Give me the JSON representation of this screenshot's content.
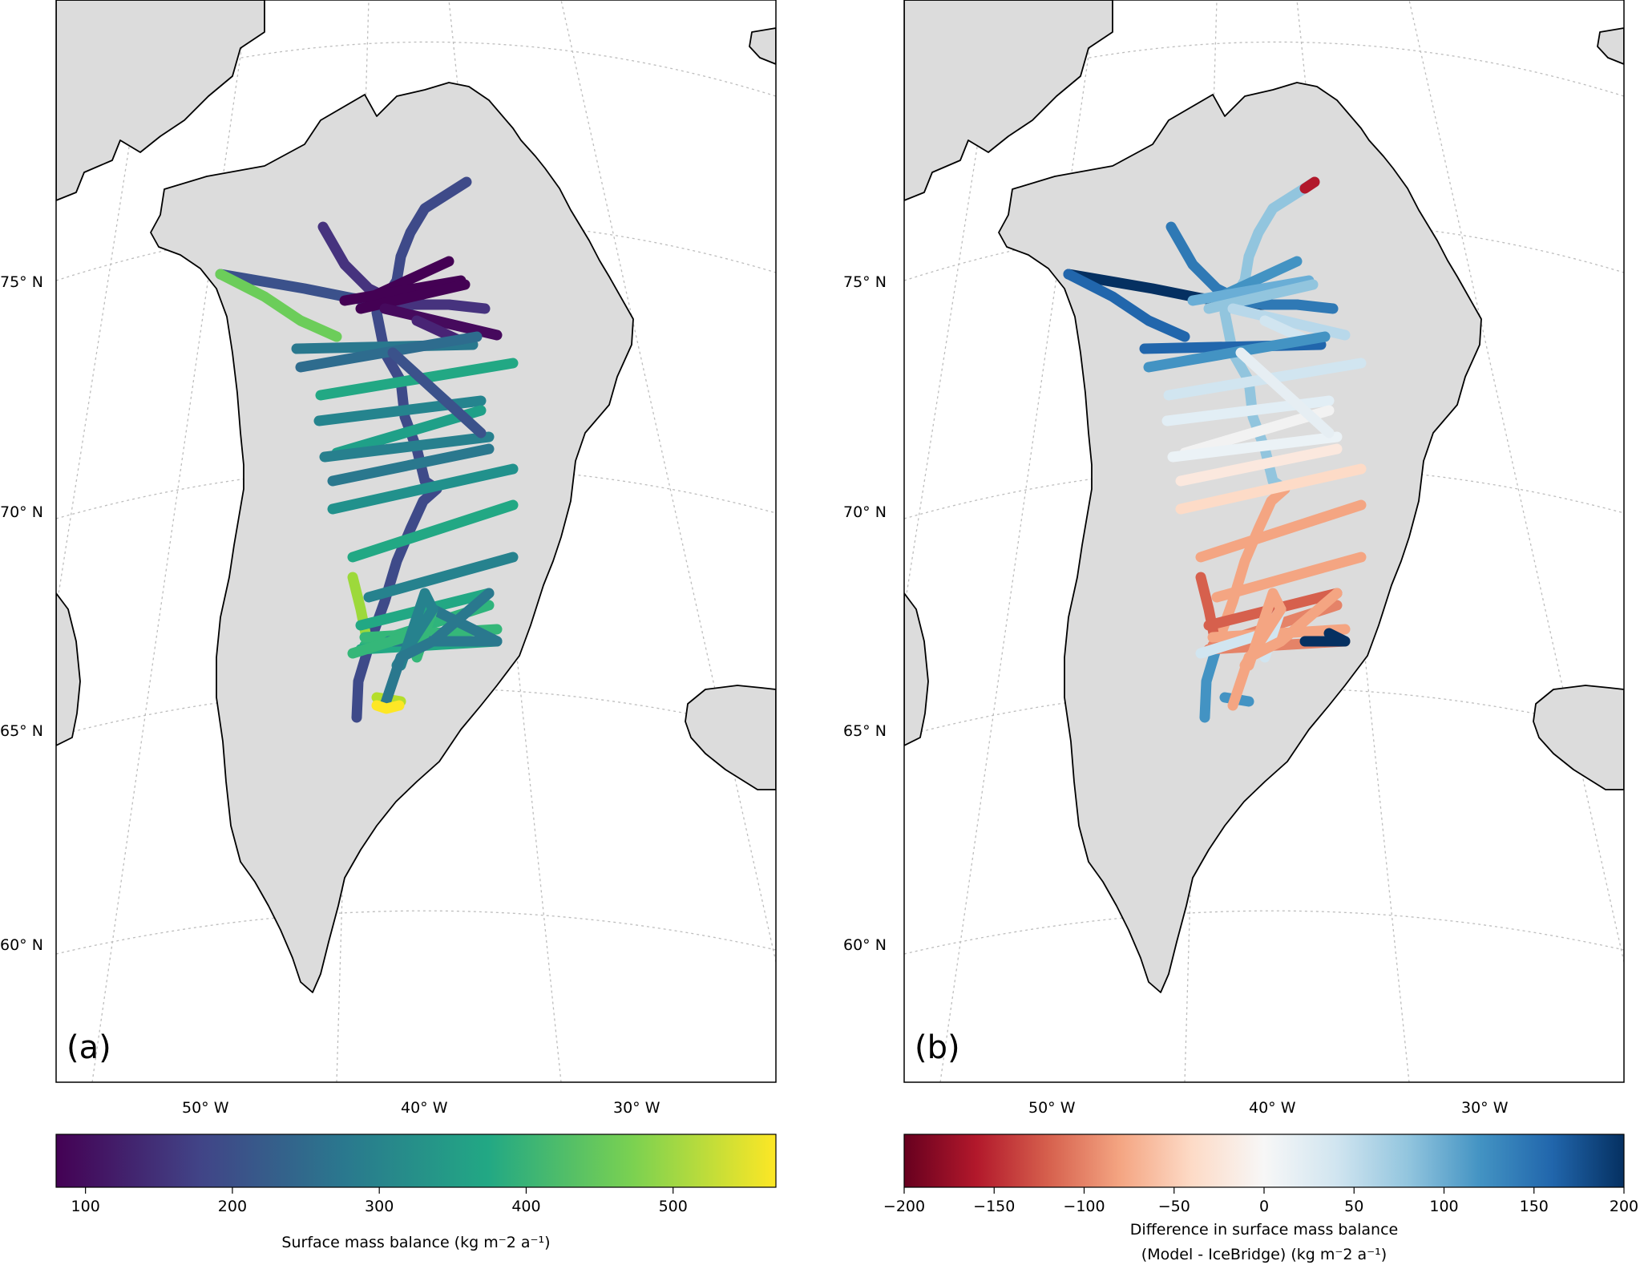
{
  "panels": [
    {
      "letter": "(a)",
      "lat_labels": [
        "75° N",
        "70° N",
        "65° N",
        "60° N"
      ],
      "lon_labels": [
        "50° W",
        "40° W",
        "30° W"
      ],
      "colorbar": {
        "colormap": "viridis",
        "colors": [
          "#440154",
          "#414487",
          "#2a788e",
          "#22a884",
          "#7ad151",
          "#fde725"
        ],
        "range": [
          80,
          570
        ],
        "ticks": [
          "100",
          "200",
          "300",
          "400",
          "500"
        ],
        "label": "Surface mass balance (kg m⁻2 a⁻¹)"
      }
    },
    {
      "letter": "(b)",
      "lat_labels": [
        "75° N",
        "70° N",
        "65° N",
        "60° N"
      ],
      "lon_labels": [
        "50° W",
        "40° W",
        "30° W"
      ],
      "colorbar": {
        "colormap": "RdBu",
        "colors": [
          "#67001f",
          "#b2182b",
          "#d6604d",
          "#f4a582",
          "#fddbc7",
          "#f7f7f7",
          "#d1e5f0",
          "#92c5de",
          "#4393c3",
          "#2166ac",
          "#053061"
        ],
        "range": [
          -200,
          200
        ],
        "ticks": [
          "−200",
          "−150",
          "−100",
          "−50",
          "0",
          "50",
          "100",
          "150",
          "200"
        ],
        "label_line1": "Difference in surface mass balance",
        "label_line2": "(Model - IceBridge) (kg m⁻2 a⁻¹)"
      }
    }
  ],
  "map_style": {
    "land": "#dcdcdc",
    "coast": "#000000",
    "grid": "#bdbdbd"
  }
}
